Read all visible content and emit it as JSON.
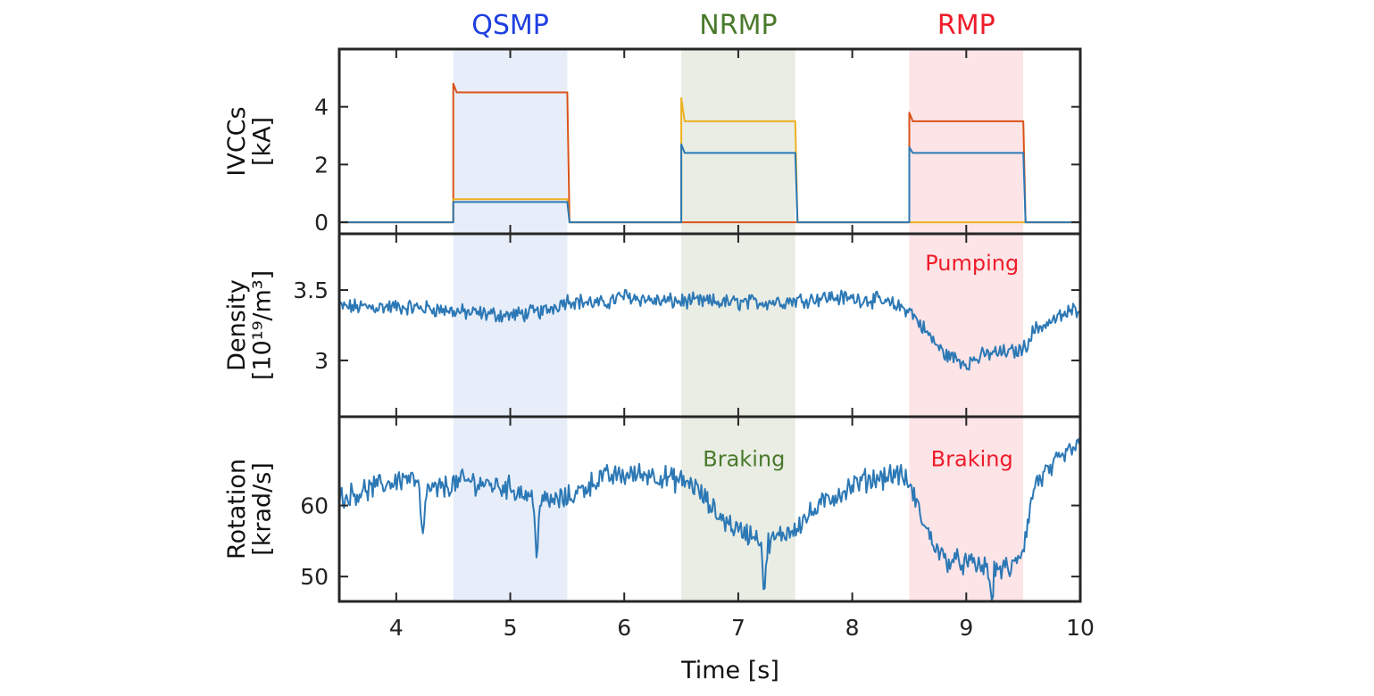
{
  "chart_data": {
    "type": "line",
    "x_axis": {
      "label": "Time [s]",
      "range": [
        3.5,
        10
      ],
      "ticks": [
        4,
        5,
        6,
        7,
        8,
        9,
        10
      ],
      "tick_labels": [
        "4",
        "5",
        "6",
        "7",
        "8",
        "9",
        "10"
      ]
    },
    "shaded_regions": [
      {
        "label": "QSMP",
        "x": [
          4.5,
          5.5
        ],
        "fill": "#e8eef9",
        "label_color": "#1f3fe0"
      },
      {
        "label": "NRMP",
        "x": [
          6.5,
          7.5
        ],
        "fill": "#e9ede4",
        "label_color": "#4a7a2c"
      },
      {
        "label": "RMP",
        "x": [
          8.5,
          9.5
        ],
        "fill": "#fde4e7",
        "label_color": "#ee1c2a"
      }
    ],
    "panels": [
      {
        "id": "ivcc",
        "ylabel_lines": [
          "IVCCs",
          "[kA]"
        ],
        "ylim": [
          -0.4,
          6
        ],
        "yticks": [
          0,
          2,
          4
        ],
        "ytick_labels": [
          "0",
          "2",
          "4"
        ],
        "series": [
          {
            "color": "#d95319",
            "steps": [
              {
                "x": [
                  4.5,
                  5.5
                ],
                "level": 4.5,
                "spike": 4.8
              },
              {
                "x": [
                  6.5,
                  7.5
                ],
                "level": 0.0,
                "spike": 0.0
              },
              {
                "x": [
                  8.5,
                  9.5
                ],
                "level": 3.5,
                "spike": 3.8
              }
            ]
          },
          {
            "color": "#edb120",
            "steps": [
              {
                "x": [
                  4.5,
                  5.5
                ],
                "level": 0.8,
                "spike": 0.8
              },
              {
                "x": [
                  6.5,
                  7.5
                ],
                "level": 3.5,
                "spike": 4.3
              },
              {
                "x": [
                  8.5,
                  9.5
                ],
                "level": 0.0,
                "spike": 0.0
              }
            ]
          },
          {
            "color": "#2c78b5",
            "steps": [
              {
                "x": [
                  4.5,
                  5.5
                ],
                "level": 0.7,
                "spike": 0.7
              },
              {
                "x": [
                  6.5,
                  7.5
                ],
                "level": 2.4,
                "spike": 2.7
              },
              {
                "x": [
                  8.5,
                  9.5
                ],
                "level": 2.4,
                "spike": 2.6
              }
            ]
          }
        ]
      },
      {
        "id": "density",
        "ylabel_lines": [
          "Density",
          "[10¹⁹/m³]"
        ],
        "ylim": [
          2.6,
          3.9
        ],
        "yticks": [
          3,
          3.5
        ],
        "ytick_labels": [
          "3",
          "3.5"
        ],
        "annotations": [
          {
            "text": "Pumping",
            "x": 9.05,
            "y": 3.64,
            "color": "#ee1c2a"
          }
        ],
        "series": [
          {
            "color": "#2c78b5",
            "noise": 0.045,
            "points": [
              [
                3.5,
                3.38
              ],
              [
                4.0,
                3.38
              ],
              [
                4.3,
                3.37
              ],
              [
                4.6,
                3.34
              ],
              [
                5.0,
                3.32
              ],
              [
                5.3,
                3.35
              ],
              [
                5.5,
                3.43
              ],
              [
                5.8,
                3.4
              ],
              [
                6.0,
                3.46
              ],
              [
                6.3,
                3.42
              ],
              [
                6.6,
                3.42
              ],
              [
                7.0,
                3.41
              ],
              [
                7.4,
                3.42
              ],
              [
                7.8,
                3.45
              ],
              [
                8.2,
                3.43
              ],
              [
                8.5,
                3.36
              ],
              [
                8.65,
                3.2
              ],
              [
                8.8,
                3.05
              ],
              [
                9.0,
                2.98
              ],
              [
                9.2,
                3.05
              ],
              [
                9.4,
                3.06
              ],
              [
                9.5,
                3.08
              ],
              [
                9.6,
                3.22
              ],
              [
                9.8,
                3.3
              ],
              [
                10.0,
                3.38
              ]
            ]
          }
        ]
      },
      {
        "id": "rotation",
        "ylabel_lines": [
          "Rotation",
          "[krad/s]"
        ],
        "ylim": [
          46.5,
          72.5
        ],
        "yticks": [
          50,
          60
        ],
        "ytick_labels": [
          "50",
          "60"
        ],
        "annotations": [
          {
            "text": "Braking",
            "x": 7.05,
            "y": 65.5,
            "color": "#4a7a2c"
          },
          {
            "text": "Braking",
            "x": 9.05,
            "y": 65.5,
            "color": "#ee1c2a"
          }
        ],
        "series": [
          {
            "color": "#2c78b5",
            "noise": 1.3,
            "points": [
              [
                3.5,
                61
              ],
              [
                3.8,
                62.5
              ],
              [
                4.1,
                64
              ],
              [
                4.3,
                62
              ],
              [
                4.6,
                63.5
              ],
              [
                5.0,
                62.5
              ],
              [
                5.3,
                60.5
              ],
              [
                5.5,
                61
              ],
              [
                5.8,
                64
              ],
              [
                6.2,
                64.5
              ],
              [
                6.6,
                63
              ],
              [
                6.8,
                59
              ],
              [
                7.0,
                56.5
              ],
              [
                7.3,
                55
              ],
              [
                7.5,
                57
              ],
              [
                7.8,
                61
              ],
              [
                8.1,
                63.5
              ],
              [
                8.4,
                64.5
              ],
              [
                8.5,
                63
              ],
              [
                8.65,
                56.5
              ],
              [
                8.8,
                52.5
              ],
              [
                9.1,
                51.5
              ],
              [
                9.4,
                51
              ],
              [
                9.5,
                54
              ],
              [
                9.6,
                63
              ],
              [
                9.8,
                66
              ],
              [
                10.0,
                69
              ]
            ],
            "dips": [
              {
                "x": 4.23,
                "y": 55
              },
              {
                "x": 5.23,
                "y": 54
              },
              {
                "x": 7.23,
                "y": 48
              },
              {
                "x": 9.22,
                "y": 47
              }
            ]
          }
        ]
      }
    ]
  }
}
